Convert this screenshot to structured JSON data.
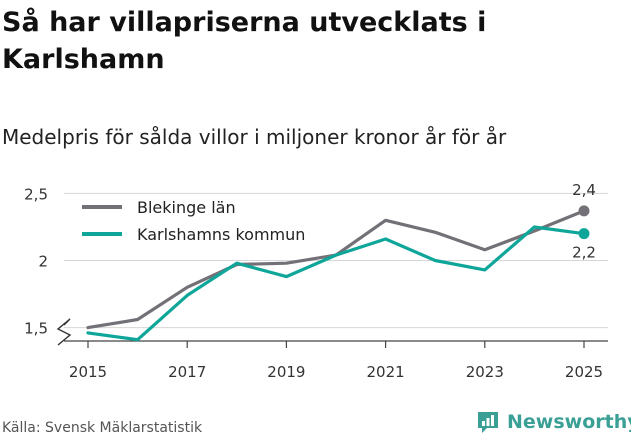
{
  "title": "Så har villapriserna utvecklats i Karlshamn",
  "subtitle": "Medelpris för sålda villor i miljoner kronor år för år",
  "source": "Källa: Svensk Mäklarstatistik",
  "brand": "Newsworthy",
  "colors": {
    "blekinge": "#737078",
    "karlshamn": "#0fa69a",
    "brand": "#3a9f95"
  },
  "chart_data": {
    "type": "line",
    "x": [
      2015,
      2016,
      2017,
      2018,
      2019,
      2020,
      2021,
      2022,
      2023,
      2024,
      2025
    ],
    "ylim": [
      1.4,
      2.6
    ],
    "xlim": [
      2015,
      2025
    ],
    "y_ticks": [
      1.5,
      2,
      2.5
    ],
    "y_tick_labels": [
      "1,5",
      "2",
      "2,5"
    ],
    "x_ticks": [
      2015,
      2017,
      2019,
      2021,
      2023,
      2025
    ],
    "x_tick_labels": [
      "2015",
      "2017",
      "2019",
      "2021",
      "2023",
      "2025"
    ],
    "grid": true,
    "legend_position": "top-left",
    "series": [
      {
        "name": "Blekinge län",
        "color": "#737078",
        "values": [
          1.5,
          1.56,
          1.8,
          1.97,
          1.98,
          2.04,
          2.3,
          2.21,
          2.08,
          2.22,
          2.37
        ],
        "end_label": "2,4"
      },
      {
        "name": "Karlshamns kommun",
        "color": "#0fa69a",
        "values": [
          1.46,
          1.41,
          1.74,
          1.98,
          1.88,
          2.04,
          2.16,
          2.0,
          1.93,
          2.25,
          2.2
        ],
        "end_label": "2,2"
      }
    ]
  }
}
